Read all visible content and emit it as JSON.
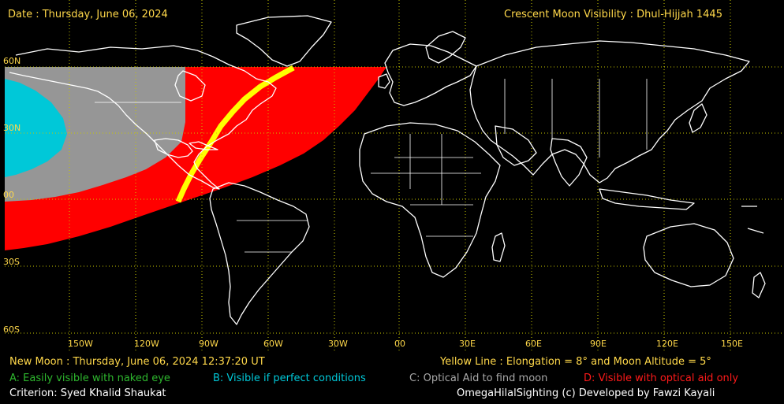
{
  "header": {
    "date": "Date : Thursday, June 06, 2024",
    "title": "Crescent Moon Visibility : Dhul-Hijjah  1445"
  },
  "lat_labels": [
    "60N",
    "30N",
    "00",
    "30S",
    "60S"
  ],
  "lon_labels": [
    "150W",
    "120W",
    "90W",
    "60W",
    "30W",
    "00",
    "30E",
    "60E",
    "90E",
    "120E",
    "150E"
  ],
  "footer": {
    "new_moon": "New Moon : Thursday, June 06, 2024  12:37:20  UT",
    "yellow_line": "Yellow Line : Elongation = 8° and Moon Altitude = 5°",
    "legend_a": "A: Easily visible with naked eye",
    "legend_b": "B: Visible if perfect conditions",
    "legend_c": "C: Optical Aid to find moon",
    "legend_d": "D: Visible with optical aid only",
    "criterion": "Criterion: Syed Khalid Shaukat",
    "credit": "OmegaHilalSighting  (c)  Developed by Fawzi Kayali"
  },
  "colors": {
    "zone_a": "#2eb82e",
    "zone_b": "#00c8d8",
    "zone_c": "#969696",
    "zone_d": "#ff0000",
    "yellow_line": "#ffff00",
    "grid": "#c8c800",
    "coast": "#ffffff"
  }
}
